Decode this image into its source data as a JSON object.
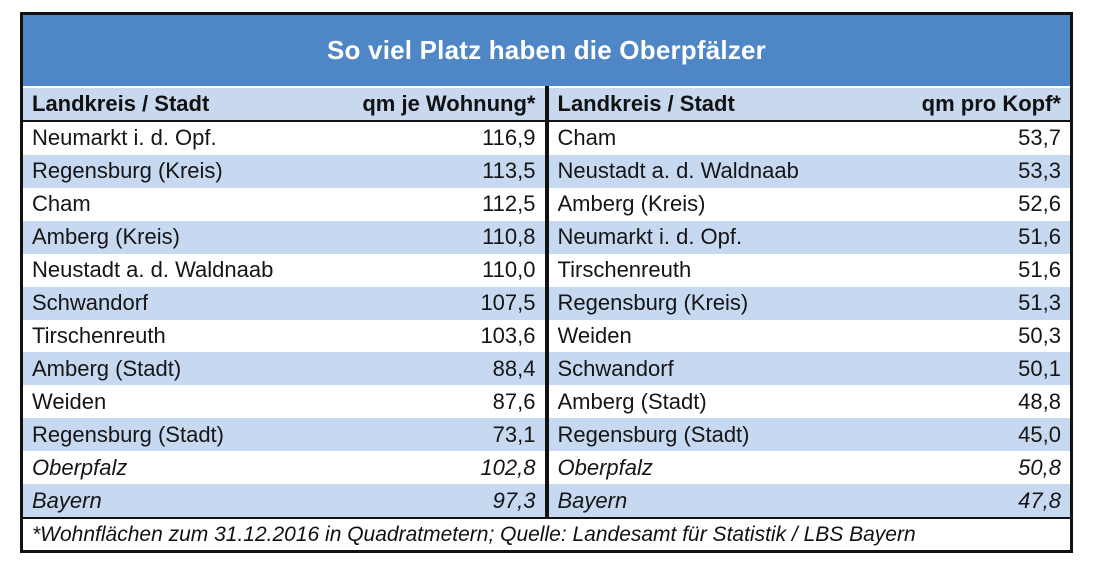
{
  "title": "So viel Platz haben die Oberpfälzer",
  "footnote": "*Wohnflächen zum 31.12.2016 in Quadratmetern; Quelle: Landesamt für Statistik / LBS Bayern",
  "colors": {
    "title_bg": "#4e86c6",
    "header_bg": "#c7d8ef",
    "stripe_bg": "#c7d9f1",
    "border": "#111111",
    "title_text": "#ffffff"
  },
  "tables": [
    {
      "col_name": "Landkreis / Stadt",
      "col_value": "qm je Wohnung*",
      "rows": [
        {
          "name": "Neumarkt i. d. Opf.",
          "value": "116,9",
          "summary": false
        },
        {
          "name": "Regensburg (Kreis)",
          "value": "113,5",
          "summary": false
        },
        {
          "name": "Cham",
          "value": "112,5",
          "summary": false
        },
        {
          "name": "Amberg (Kreis)",
          "value": "110,8",
          "summary": false
        },
        {
          "name": "Neustadt a. d. Waldnaab",
          "value": "110,0",
          "summary": false
        },
        {
          "name": "Schwandorf",
          "value": "107,5",
          "summary": false
        },
        {
          "name": "Tirschenreuth",
          "value": "103,6",
          "summary": false
        },
        {
          "name": "Amberg (Stadt)",
          "value": "88,4",
          "summary": false
        },
        {
          "name": "Weiden",
          "value": "87,6",
          "summary": false
        },
        {
          "name": "Regensburg (Stadt)",
          "value": "73,1",
          "summary": false
        },
        {
          "name": "Oberpfalz",
          "value": "102,8",
          "summary": true
        },
        {
          "name": "Bayern",
          "value": "97,3",
          "summary": true
        }
      ]
    },
    {
      "col_name": "Landkreis / Stadt",
      "col_value": "qm pro Kopf*",
      "rows": [
        {
          "name": "Cham",
          "value": "53,7",
          "summary": false
        },
        {
          "name": "Neustadt a. d. Waldnaab",
          "value": "53,3",
          "summary": false
        },
        {
          "name": "Amberg (Kreis)",
          "value": "52,6",
          "summary": false
        },
        {
          "name": "Neumarkt i. d. Opf.",
          "value": "51,6",
          "summary": false
        },
        {
          "name": "Tirschenreuth",
          "value": "51,6",
          "summary": false
        },
        {
          "name": "Regensburg (Kreis)",
          "value": "51,3",
          "summary": false
        },
        {
          "name": "Weiden",
          "value": "50,3",
          "summary": false
        },
        {
          "name": "Schwandorf",
          "value": "50,1",
          "summary": false
        },
        {
          "name": "Amberg (Stadt)",
          "value": "48,8",
          "summary": false
        },
        {
          "name": "Regensburg (Stadt)",
          "value": "45,0",
          "summary": false
        },
        {
          "name": "Oberpfalz",
          "value": "50,8",
          "summary": true
        },
        {
          "name": "Bayern",
          "value": "47,8",
          "summary": true
        }
      ]
    }
  ],
  "chart_data": {
    "type": "table",
    "title": "So viel Platz haben die Oberpfälzer",
    "tables": [
      {
        "columns": [
          "Landkreis / Stadt",
          "qm je Wohnung*"
        ],
        "rows": [
          [
            "Neumarkt i. d. Opf.",
            116.9
          ],
          [
            "Regensburg (Kreis)",
            113.5
          ],
          [
            "Cham",
            112.5
          ],
          [
            "Amberg (Kreis)",
            110.8
          ],
          [
            "Neustadt a. d. Waldnaab",
            110.0
          ],
          [
            "Schwandorf",
            107.5
          ],
          [
            "Tirschenreuth",
            103.6
          ],
          [
            "Amberg (Stadt)",
            88.4
          ],
          [
            "Weiden",
            87.6
          ],
          [
            "Regensburg (Stadt)",
            73.1
          ],
          [
            "Oberpfalz",
            102.8
          ],
          [
            "Bayern",
            97.3
          ]
        ]
      },
      {
        "columns": [
          "Landkreis / Stadt",
          "qm pro Kopf*"
        ],
        "rows": [
          [
            "Cham",
            53.7
          ],
          [
            "Neustadt a. d. Waldnaab",
            53.3
          ],
          [
            "Amberg (Kreis)",
            52.6
          ],
          [
            "Neumarkt i. d. Opf.",
            51.6
          ],
          [
            "Tirschenreuth",
            51.6
          ],
          [
            "Regensburg (Kreis)",
            51.3
          ],
          [
            "Weiden",
            50.3
          ],
          [
            "Schwandorf",
            50.1
          ],
          [
            "Amberg (Stadt)",
            48.8
          ],
          [
            "Regensburg (Stadt)",
            45.0
          ],
          [
            "Oberpfalz",
            50.8
          ],
          [
            "Bayern",
            47.8
          ]
        ]
      }
    ],
    "annotations": [
      "*Wohnflächen zum 31.12.2016 in Quadratmetern; Quelle: Landesamt für Statistik / LBS Bayern"
    ]
  }
}
